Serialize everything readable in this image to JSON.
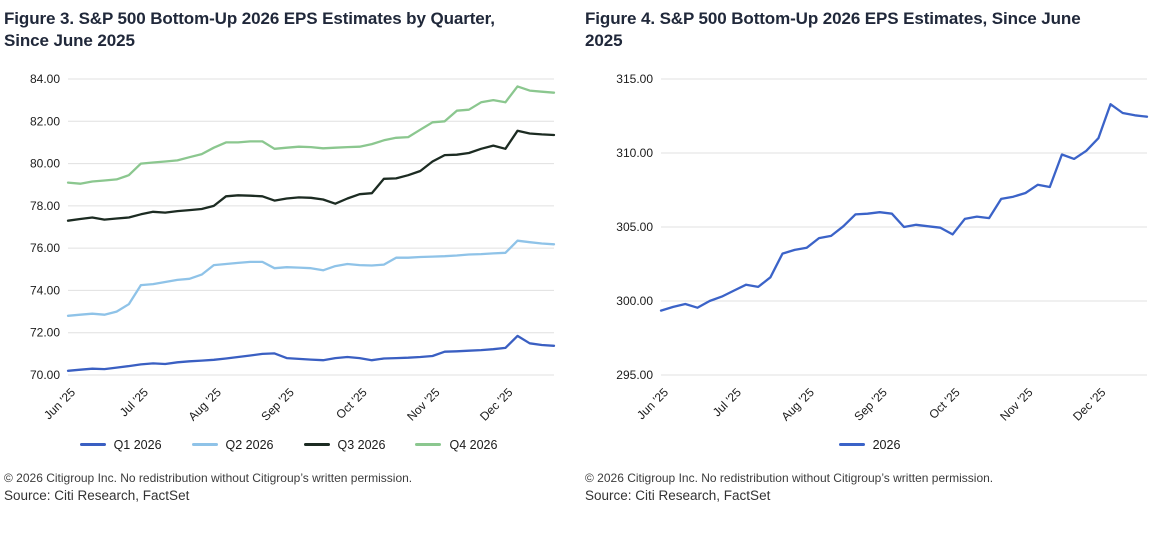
{
  "figures": [
    {
      "copyright": "© 2026 Citigroup Inc. No redistribution without Citigroup’s written permission.",
      "source": "Source: Citi Research, FactSet"
    },
    {
      "copyright": "© 2026 Citigroup Inc. No redistribution without Citigroup’s written permission.",
      "source": "Source: Citi Research, FactSet"
    }
  ],
  "chart_data": [
    {
      "type": "line",
      "title": "Figure 3. S&P 500 Bottom-Up 2026 EPS Estimates by Quarter, Since June 2025",
      "xlabel": "",
      "ylabel": "",
      "x_tick_labels": [
        "Jun '25",
        "Jul '25",
        "Aug '25",
        "Sep '25",
        "Oct '25",
        "Nov '25",
        "Dec '25"
      ],
      "x_ticks_every": 6,
      "ylim": [
        70,
        84
      ],
      "ytick_step": 2,
      "ytick_labels": [
        "84.00",
        "82.00",
        "80.00",
        "78.00",
        "76.00",
        "74.00",
        "72.00",
        "70.00"
      ],
      "grid": true,
      "gridline_color": "#e0e0e0",
      "legend_position": "bottom",
      "series": [
        {
          "name": "Q1 2026",
          "color": "#3a5fc2",
          "values": [
            70.2,
            70.25,
            70.3,
            70.28,
            70.35,
            70.42,
            70.5,
            70.55,
            70.52,
            70.6,
            70.65,
            70.68,
            70.72,
            70.78,
            70.85,
            70.92,
            71.0,
            71.02,
            70.8,
            70.76,
            70.73,
            70.7,
            70.8,
            70.85,
            70.8,
            70.7,
            70.78,
            70.8,
            70.82,
            70.85,
            70.9,
            71.1,
            71.12,
            71.15,
            71.18,
            71.22,
            71.28,
            71.85,
            71.5,
            71.42,
            71.38
          ]
        },
        {
          "name": "Q2 2026",
          "color": "#8fc3e8",
          "values": [
            72.8,
            72.85,
            72.9,
            72.85,
            73.0,
            73.35,
            74.25,
            74.3,
            74.4,
            74.5,
            74.55,
            74.75,
            75.2,
            75.25,
            75.3,
            75.35,
            75.35,
            75.05,
            75.1,
            75.08,
            75.05,
            74.95,
            75.15,
            75.25,
            75.2,
            75.18,
            75.22,
            75.55,
            75.55,
            75.58,
            75.6,
            75.62,
            75.65,
            75.7,
            75.72,
            75.75,
            75.78,
            76.35,
            76.28,
            76.22,
            76.18
          ]
        },
        {
          "name": "Q3 2026",
          "color": "#1c2b22",
          "values": [
            77.3,
            77.38,
            77.45,
            77.35,
            77.4,
            77.45,
            77.6,
            77.72,
            77.68,
            77.75,
            77.8,
            77.85,
            78.0,
            78.45,
            78.5,
            78.48,
            78.45,
            78.25,
            78.35,
            78.4,
            78.38,
            78.3,
            78.1,
            78.35,
            78.55,
            78.6,
            79.28,
            79.3,
            79.45,
            79.65,
            80.1,
            80.4,
            80.42,
            80.5,
            80.7,
            80.85,
            80.7,
            81.55,
            81.42,
            81.38,
            81.35
          ]
        },
        {
          "name": "Q4 2026",
          "color": "#8bc78f",
          "values": [
            79.1,
            79.05,
            79.15,
            79.2,
            79.25,
            79.45,
            80.0,
            80.05,
            80.1,
            80.15,
            80.3,
            80.45,
            80.75,
            81.0,
            81.0,
            81.05,
            81.05,
            80.7,
            80.75,
            80.8,
            80.78,
            80.72,
            80.75,
            80.78,
            80.8,
            80.92,
            81.1,
            81.22,
            81.25,
            81.6,
            81.95,
            82.0,
            82.5,
            82.55,
            82.9,
            83.0,
            82.9,
            83.65,
            83.45,
            83.4,
            83.35
          ]
        }
      ]
    },
    {
      "type": "line",
      "title": "Figure 4. S&P 500 Bottom-Up 2026 EPS Estimates, Since June 2025",
      "xlabel": "",
      "ylabel": "",
      "x_tick_labels": [
        "Jun '25",
        "Jul '25",
        "Aug '25",
        "Sep '25",
        "Oct '25",
        "Nov '25",
        "Dec '25"
      ],
      "x_ticks_every": 6,
      "ylim": [
        295,
        315
      ],
      "ytick_step": 5,
      "ytick_labels": [
        "315.00",
        "310.00",
        "305.00",
        "300.00",
        "295.00"
      ],
      "grid": true,
      "gridline_color": "#e0e0e0",
      "legend_position": "bottom",
      "series": [
        {
          "name": "2026",
          "color": "#3b63c8",
          "values": [
            299.35,
            299.6,
            299.8,
            299.55,
            300.0,
            300.3,
            300.7,
            301.1,
            300.95,
            301.6,
            303.2,
            303.45,
            303.6,
            304.25,
            304.4,
            305.05,
            305.85,
            305.9,
            306.0,
            305.9,
            305.0,
            305.15,
            305.05,
            304.95,
            304.5,
            305.55,
            305.7,
            305.6,
            306.9,
            307.05,
            307.3,
            307.85,
            307.7,
            309.9,
            309.6,
            310.15,
            311.0,
            313.3,
            312.7,
            312.55,
            312.45
          ]
        }
      ]
    }
  ]
}
